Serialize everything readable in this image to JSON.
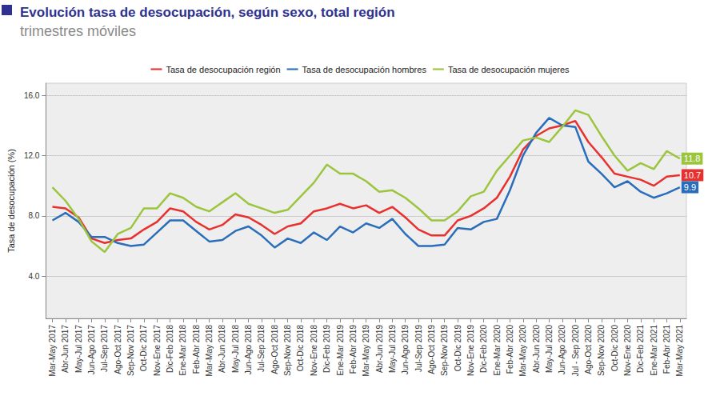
{
  "chart_data": {
    "type": "line",
    "title": "Evolución tasa de desocupación, según sexo, total región",
    "subtitle": "trimestres móviles",
    "y_label": "Tasa de desocupación (%)",
    "categories": [
      "Mar-May 2017",
      "Abr-Jun 2017",
      "May-Jul 2017",
      "Jun-Ago 2017",
      "Jul-Sep 2017",
      "Ago-Oct 2017",
      "Sep-Nov 2017",
      "Oct-Dic 2017",
      "Nov-Ene 2017",
      "Dic-Feb 2018",
      "Ene-Mar 2018",
      "Feb-Abr 2018",
      "Mar-May 2018",
      "Abr-Jun 2018",
      "May-Jul 2018",
      "Jun-Ago 2018",
      "Jul-Sep 2018",
      "Ago-Oct 2018",
      "Sep-Nov 2018",
      "Oct-Dic 2018",
      "Nov-Ene 2018",
      "Dic-Feb 2019",
      "Ene-Mar 2019",
      "Feb-Abr 2019",
      "Mar-May 2019",
      "Abr-Jun 2019",
      "May-Jul 2019",
      "Jun-Ago 2019",
      "Jul-Sep 2019",
      "Ago-Oct 2019",
      "Sep-Nov 2019",
      "Oct-Dic 2019",
      "Nov-Ene 2019",
      "Dic-Feb 2020",
      "Ene-Mar 2020",
      "Feb-Abr 2020",
      "Mar-May 2020",
      "Abr-Jun 2020",
      "May-Jul 2020",
      "Jun-Ago 2020",
      "Jul - Sep 2020",
      "Ago-Oct 2020",
      "Sep-Nov 2020",
      "Oct-Dic 2020",
      "Nov-Ene 2020",
      "Dic-Feb 2021",
      "Ene-Mar 2021",
      "Feb-Abr 2021",
      "Mar-May 2021"
    ],
    "series": [
      {
        "name": "Tasa de desocupación región",
        "color": "#e8312f",
        "values": [
          8.6,
          8.5,
          7.9,
          6.5,
          6.2,
          6.4,
          6.5,
          7.1,
          7.6,
          8.5,
          8.3,
          7.6,
          7.1,
          7.4,
          8.1,
          7.9,
          7.4,
          6.8,
          7.3,
          7.5,
          8.3,
          8.5,
          8.8,
          8.5,
          8.7,
          8.2,
          8.6,
          7.9,
          7.1,
          6.7,
          6.7,
          7.7,
          8.0,
          8.5,
          9.2,
          10.6,
          12.4,
          13.3,
          13.8,
          14.0,
          14.3,
          12.9,
          11.9,
          10.8,
          10.6,
          10.4,
          10.0,
          10.6,
          10.7
        ]
      },
      {
        "name": "Tasa de desocupación hombres",
        "color": "#2a6ebb",
        "values": [
          7.7,
          8.2,
          7.6,
          6.6,
          6.6,
          6.2,
          6.0,
          6.1,
          6.9,
          7.7,
          7.7,
          7.0,
          6.3,
          6.4,
          7.0,
          7.3,
          6.7,
          5.9,
          6.5,
          6.2,
          6.9,
          6.4,
          7.3,
          6.9,
          7.5,
          7.2,
          7.8,
          6.8,
          6.0,
          6.0,
          6.1,
          7.2,
          7.1,
          7.6,
          7.8,
          9.7,
          12.0,
          13.5,
          14.5,
          14.0,
          13.9,
          11.6,
          10.8,
          9.9,
          10.3,
          9.6,
          9.2,
          9.5,
          9.9
        ]
      },
      {
        "name": "Tasa de desocupación mujeres",
        "color": "#9bc53d",
        "values": [
          9.9,
          9.0,
          7.8,
          6.3,
          5.6,
          6.8,
          7.2,
          8.5,
          8.5,
          9.5,
          9.2,
          8.6,
          8.3,
          8.9,
          9.5,
          8.8,
          8.5,
          8.2,
          8.4,
          9.3,
          10.2,
          11.4,
          10.8,
          10.8,
          10.3,
          9.6,
          9.7,
          9.2,
          8.5,
          7.7,
          7.7,
          8.3,
          9.3,
          9.6,
          11.0,
          12.0,
          13.0,
          13.2,
          12.9,
          13.9,
          15.0,
          14.7,
          13.3,
          12.0,
          11.0,
          11.5,
          11.1,
          12.3,
          11.8
        ]
      }
    ],
    "annotations": [
      {
        "text": "11.8",
        "series": "Tasa de desocupación mujeres"
      },
      {
        "text": "10.7",
        "series": "Tasa de desocupación región"
      },
      {
        "text": "9.9",
        "series": "Tasa de desocupación hombres"
      }
    ],
    "ylim": [
      1.2,
      16.8
    ],
    "yticks": [
      {
        "value": 4,
        "label": "4.0"
      },
      {
        "value": 8,
        "label": "8.0"
      },
      {
        "value": 12,
        "label": "12.0"
      },
      {
        "value": 16,
        "label": "16.0"
      }
    ],
    "grid": true,
    "legend": "top"
  }
}
